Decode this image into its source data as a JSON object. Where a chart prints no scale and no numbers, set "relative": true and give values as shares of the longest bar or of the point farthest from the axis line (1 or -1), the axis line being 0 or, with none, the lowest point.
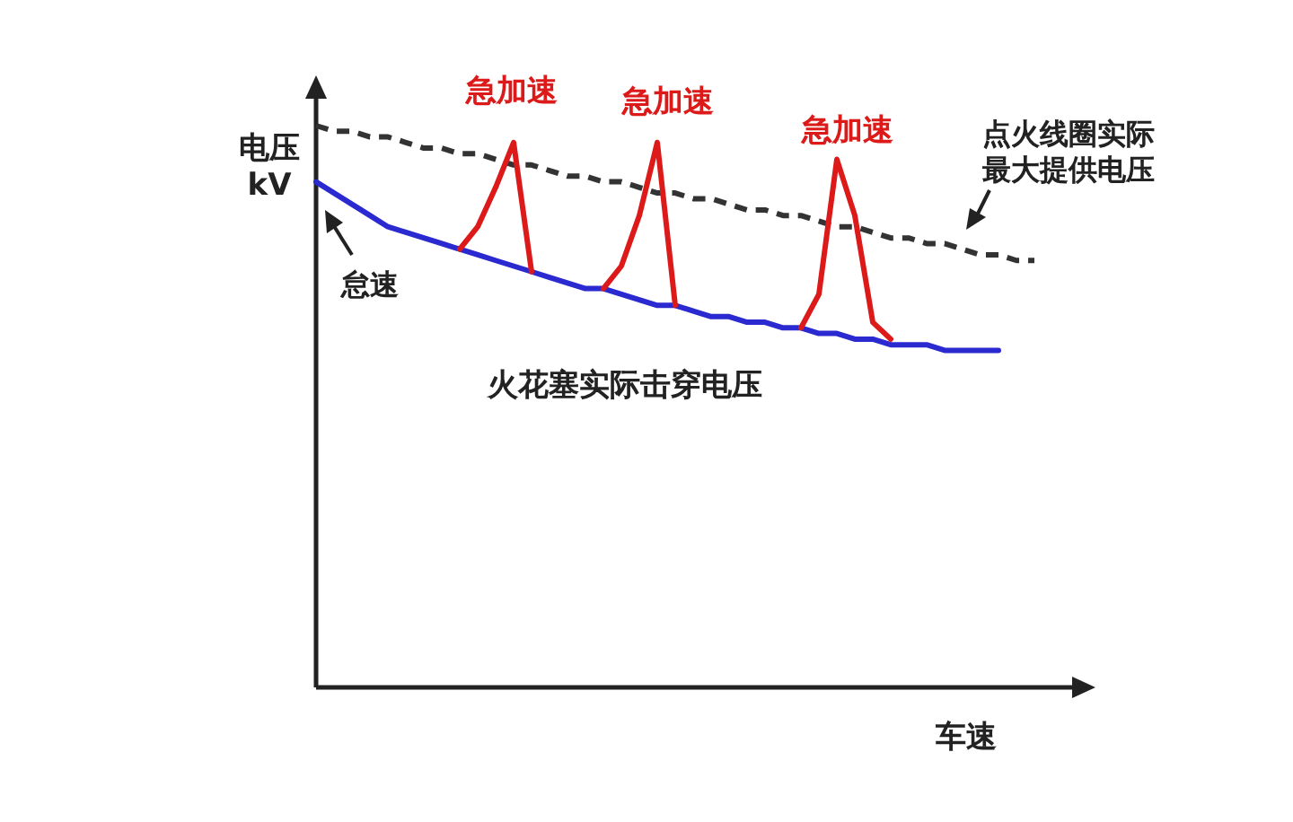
{
  "chart_data": {
    "type": "line",
    "relative": true,
    "xlabel": "车速",
    "ylabel": "电压\nkV",
    "grid": false,
    "marker": "none",
    "categories": [
      null,
      null,
      null,
      null,
      null,
      null,
      null,
      null,
      null,
      null,
      null,
      null,
      null,
      null,
      null,
      null,
      null,
      null,
      null,
      null,
      null,
      null,
      null,
      null,
      null,
      null,
      null,
      null,
      null,
      null,
      null,
      null,
      null,
      null,
      null,
      null,
      null,
      null,
      null,
      null,
      null
    ],
    "series": [
      {
        "color": "#2a2ad0",
        "line_style": "solid",
        "values": [
          0.9,
          0.88,
          0.86,
          0.84,
          0.82,
          0.81,
          0.8,
          0.79,
          0.78,
          0.77,
          0.76,
          0.75,
          0.74,
          0.73,
          0.72,
          0.71,
          0.71,
          0.7,
          0.69,
          0.68,
          0.68,
          0.67,
          0.66,
          0.66,
          0.65,
          0.65,
          0.64,
          0.64,
          0.63,
          0.63,
          0.62,
          0.62,
          0.61,
          0.61,
          0.61,
          0.6,
          0.6,
          0.6,
          0.6,
          null,
          null
        ]
      },
      {
        "color": "#333333",
        "line_style": "dashed",
        "values": [
          1.0,
          0.99,
          0.99,
          0.98,
          0.98,
          0.97,
          0.96,
          0.96,
          0.95,
          0.95,
          0.94,
          0.93,
          0.93,
          0.92,
          0.91,
          0.91,
          0.9,
          0.9,
          0.89,
          0.88,
          0.88,
          0.87,
          0.87,
          0.86,
          0.85,
          0.85,
          0.84,
          0.84,
          0.83,
          0.82,
          0.82,
          0.81,
          0.8,
          0.8,
          0.79,
          0.79,
          0.78,
          0.77,
          0.77,
          0.76,
          0.76
        ]
      },
      {
        "color": "#dd1a1a",
        "line_style": "solid",
        "values": [
          null,
          null,
          null,
          null,
          null,
          null,
          null,
          null,
          0.78,
          0.82,
          0.89,
          0.97,
          0.74,
          null,
          null,
          null,
          0.71,
          0.75,
          0.84,
          0.97,
          0.68,
          null,
          null,
          null,
          null,
          null,
          null,
          0.64,
          0.7,
          0.94,
          0.84,
          0.65,
          0.62,
          null,
          null,
          null,
          null,
          null,
          null,
          null,
          null
        ]
      }
    ],
    "annotations": [
      "急加速",
      "急加速",
      "急加速",
      "点火线圈实际",
      "最大提供电压",
      "怠速",
      "火花塞实际击穿电压"
    ]
  }
}
